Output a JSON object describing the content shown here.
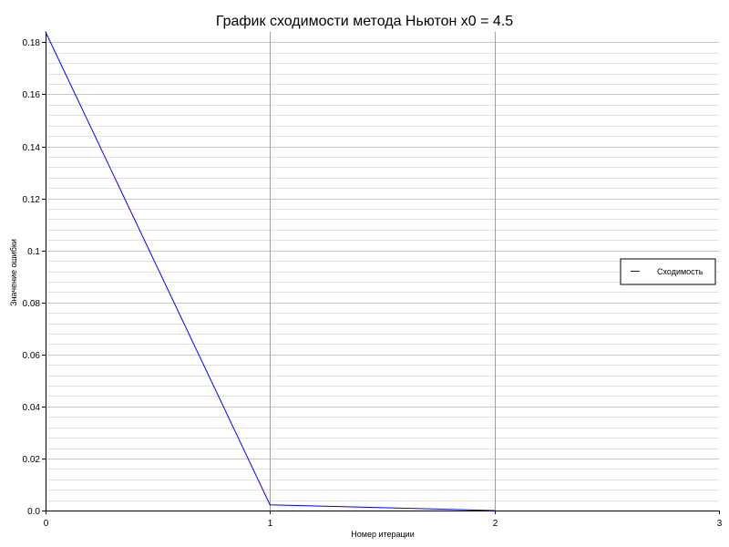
{
  "chart_data": {
    "type": "line",
    "title": "График сходимости метода Ньютон x0 = 4.5",
    "xlabel": "Номер итерации",
    "ylabel": "Значение ошибки",
    "xlim": [
      0,
      3
    ],
    "ylim": [
      0,
      0.184
    ],
    "x_ticks": [
      "0",
      "1",
      "2",
      "3"
    ],
    "x_tick_values": [
      0,
      1,
      2,
      3
    ],
    "y_ticks": [
      "0.0",
      "0.02",
      "0.04",
      "0.06",
      "0.08",
      "0.1",
      "0.12",
      "0.14",
      "0.16",
      "0.18"
    ],
    "y_tick_values": [
      0,
      0.02,
      0.04,
      0.06,
      0.08,
      0.1,
      0.12,
      0.14,
      0.16,
      0.18
    ],
    "grid": true,
    "legend_position": "right",
    "series": [
      {
        "name": "Сходимость",
        "color": "#0000ff",
        "x": [
          0,
          1,
          2
        ],
        "y": [
          0.184,
          0.0022,
          0.0
        ]
      }
    ]
  }
}
